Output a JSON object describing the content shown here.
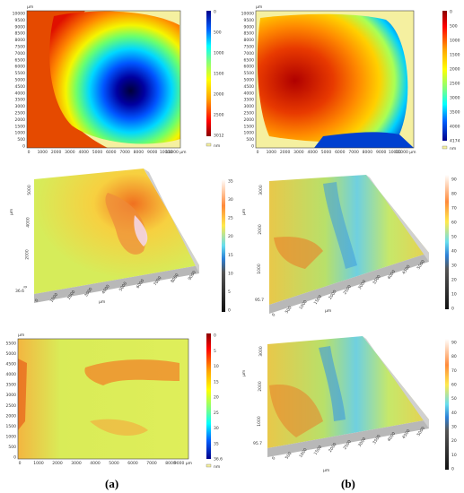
{
  "captions": {
    "left": "(a)",
    "right": "(b)"
  },
  "units": {
    "um": "µm"
  },
  "panel_a1": {
    "y_ticks": [
      "0",
      "500",
      "1000",
      "1500",
      "2000",
      "2500",
      "3000",
      "3500",
      "4000",
      "4500",
      "5000",
      "5500",
      "6000",
      "6500",
      "7000",
      "7500",
      "8000",
      "8500",
      "9000",
      "9500",
      "10000"
    ],
    "x_ticks": [
      "0",
      "1000",
      "2000",
      "3000",
      "4000",
      "5000",
      "6000",
      "7000",
      "8000",
      "9000",
      "10000",
      "11000 µm"
    ],
    "scale_ticks": [
      "0",
      "500",
      "1000",
      "1500",
      "2000",
      "2500",
      "3012"
    ],
    "legend_nm": "nm"
  },
  "panel_b1": {
    "y_ticks": [
      "0",
      "500",
      "1000",
      "1500",
      "2000",
      "2500",
      "3000",
      "3500",
      "4000",
      "4500",
      "5000",
      "5500",
      "6000",
      "6500",
      "7000",
      "7500",
      "8000",
      "8500",
      "9000",
      "9500",
      "10000"
    ],
    "x_ticks": [
      "0",
      "1000",
      "2000",
      "3000",
      "4000",
      "5000",
      "6000",
      "7000",
      "8000",
      "9000",
      "10000",
      "11000 µm"
    ],
    "scale_ticks": [
      "0",
      "500",
      "1000",
      "1500",
      "2000",
      "2500",
      "3000",
      "3500",
      "4000",
      "4174"
    ],
    "legend_nm": "nm"
  },
  "panel_a2": {
    "scale_ticks": [
      "35",
      "30",
      "25",
      "20",
      "15",
      "10",
      "5",
      "0"
    ],
    "y_ticks": [
      "0",
      "2000",
      "4000",
      "5000"
    ],
    "x_ticks": [
      "0",
      "1000",
      "2000",
      "3000",
      "4000",
      "5000",
      "6000",
      "7000",
      "8000",
      "9000"
    ],
    "z_label": "36.6",
    "x_unit": "µm",
    "y_unit": "µm"
  },
  "panel_b2": {
    "scale_ticks": [
      "90",
      "80",
      "70",
      "60",
      "50",
      "40",
      "30",
      "20",
      "10",
      "0"
    ],
    "y_ticks": [
      "1000",
      "2000",
      "3000"
    ],
    "x_ticks": [
      "0",
      "500",
      "1000",
      "1500",
      "2000",
      "2500",
      "3000",
      "3500",
      "4000",
      "4500",
      "5000"
    ],
    "z_label": "95.7",
    "x_unit": "µm",
    "y_unit": "µm"
  },
  "panel_a3": {
    "y_ticks": [
      "0",
      "500",
      "1000",
      "1500",
      "2000",
      "2500",
      "3000",
      "3500",
      "4000",
      "4500",
      "5000",
      "5500"
    ],
    "x_ticks": [
      "0",
      "1000",
      "2000",
      "3000",
      "4000",
      "5000",
      "6000",
      "7000",
      "8000",
      "9000 µm"
    ],
    "scale_ticks": [
      "0",
      "5",
      "10",
      "15",
      "20",
      "25",
      "30",
      "35",
      "36.6"
    ],
    "legend_nm": "nm"
  },
  "panel_b3": {
    "scale_ticks": [
      "90",
      "80",
      "70",
      "60",
      "50",
      "40",
      "30",
      "20",
      "10",
      "0"
    ],
    "y_ticks": [
      "1000",
      "2000",
      "3000"
    ],
    "x_ticks": [
      "0",
      "500",
      "1000",
      "1500",
      "2000",
      "2500",
      "3000",
      "3500",
      "4000",
      "4500",
      "5000"
    ],
    "z_label": "95.7",
    "x_unit": "µm",
    "y_unit": "µm"
  },
  "colors": {
    "jet_low": "#00008b",
    "jet_high": "#8b0000",
    "nodata": "#f5f0a0"
  }
}
